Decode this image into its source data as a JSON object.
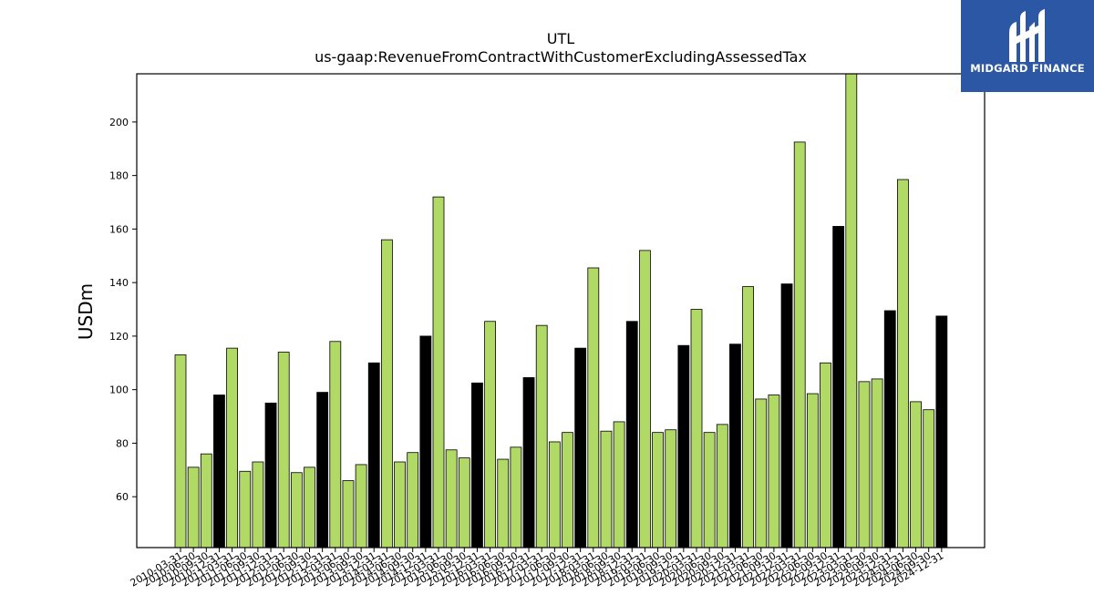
{
  "logo": {
    "text": "MIDGARD FINANCE",
    "icon": "midgard-logo-icon",
    "background": "#2b57a5"
  },
  "chart_data": {
    "type": "bar",
    "title": "UTL",
    "subtitle": "us-gaap:RevenueFromContractWithCustomerExcludingAssessedTax",
    "xlabel": "",
    "ylabel": "USDm",
    "ylim": [
      41,
      218
    ],
    "yticks": [
      60,
      80,
      100,
      120,
      140,
      160,
      180,
      200
    ],
    "grid": false,
    "colors": {
      "quarter": "#b0d966",
      "annual": "#000000",
      "edge": "#000000"
    },
    "categories": [
      "2010-03-31",
      "2010-06-30",
      "2010-09-30",
      "2010-12-31",
      "2011-03-31",
      "2011-06-30",
      "2011-09-30",
      "2011-12-31",
      "2012-03-31",
      "2012-06-30",
      "2012-09-30",
      "2012-12-31",
      "2013-03-31",
      "2013-06-30",
      "2013-09-30",
      "2013-12-31",
      "2014-03-31",
      "2014-06-30",
      "2014-09-30",
      "2014-12-31",
      "2015-03-31",
      "2015-06-30",
      "2015-09-30",
      "2015-12-31",
      "2016-03-31",
      "2016-06-30",
      "2016-09-30",
      "2016-12-31",
      "2017-03-31",
      "2017-06-30",
      "2017-09-30",
      "2017-12-31",
      "2018-03-31",
      "2018-06-30",
      "2018-09-30",
      "2018-12-31",
      "2019-03-31",
      "2019-06-30",
      "2019-09-30",
      "2019-12-31",
      "2020-03-31",
      "2020-06-30",
      "2020-09-30",
      "2020-12-31",
      "2021-03-31",
      "2021-06-30",
      "2021-09-30",
      "2021-12-31",
      "2022-03-31",
      "2022-06-30",
      "2022-09-30",
      "2022-12-31",
      "2023-03-31",
      "2023-06-30",
      "2023-09-30",
      "2023-12-31",
      "2024-03-31",
      "2024-06-30",
      "2024-09-30",
      "2024-12-31"
    ],
    "values": [
      113,
      71,
      76,
      98,
      115.5,
      69.5,
      73,
      95,
      114,
      69,
      71,
      99,
      118,
      66,
      72,
      110,
      156,
      73,
      76.5,
      120,
      172,
      77.5,
      74.5,
      102.5,
      125.5,
      74,
      78.5,
      104.5,
      124,
      80.5,
      84,
      115.5,
      145.5,
      84.5,
      88,
      125.5,
      152,
      84,
      85,
      116.5,
      130,
      84,
      87,
      117,
      138.5,
      96.5,
      98,
      139.5,
      192.5,
      98.5,
      110,
      161,
      218,
      103,
      104,
      129.5,
      178.5,
      95.5,
      92.5,
      127.5
    ],
    "annual_flags": [
      0,
      0,
      0,
      1,
      0,
      0,
      0,
      1,
      0,
      0,
      0,
      1,
      0,
      0,
      0,
      1,
      0,
      0,
      0,
      1,
      0,
      0,
      0,
      1,
      0,
      0,
      0,
      1,
      0,
      0,
      0,
      1,
      0,
      0,
      0,
      1,
      0,
      0,
      0,
      1,
      0,
      0,
      0,
      1,
      0,
      0,
      0,
      1,
      0,
      0,
      0,
      1,
      0,
      0,
      0,
      1,
      0,
      0,
      0,
      1
    ]
  }
}
